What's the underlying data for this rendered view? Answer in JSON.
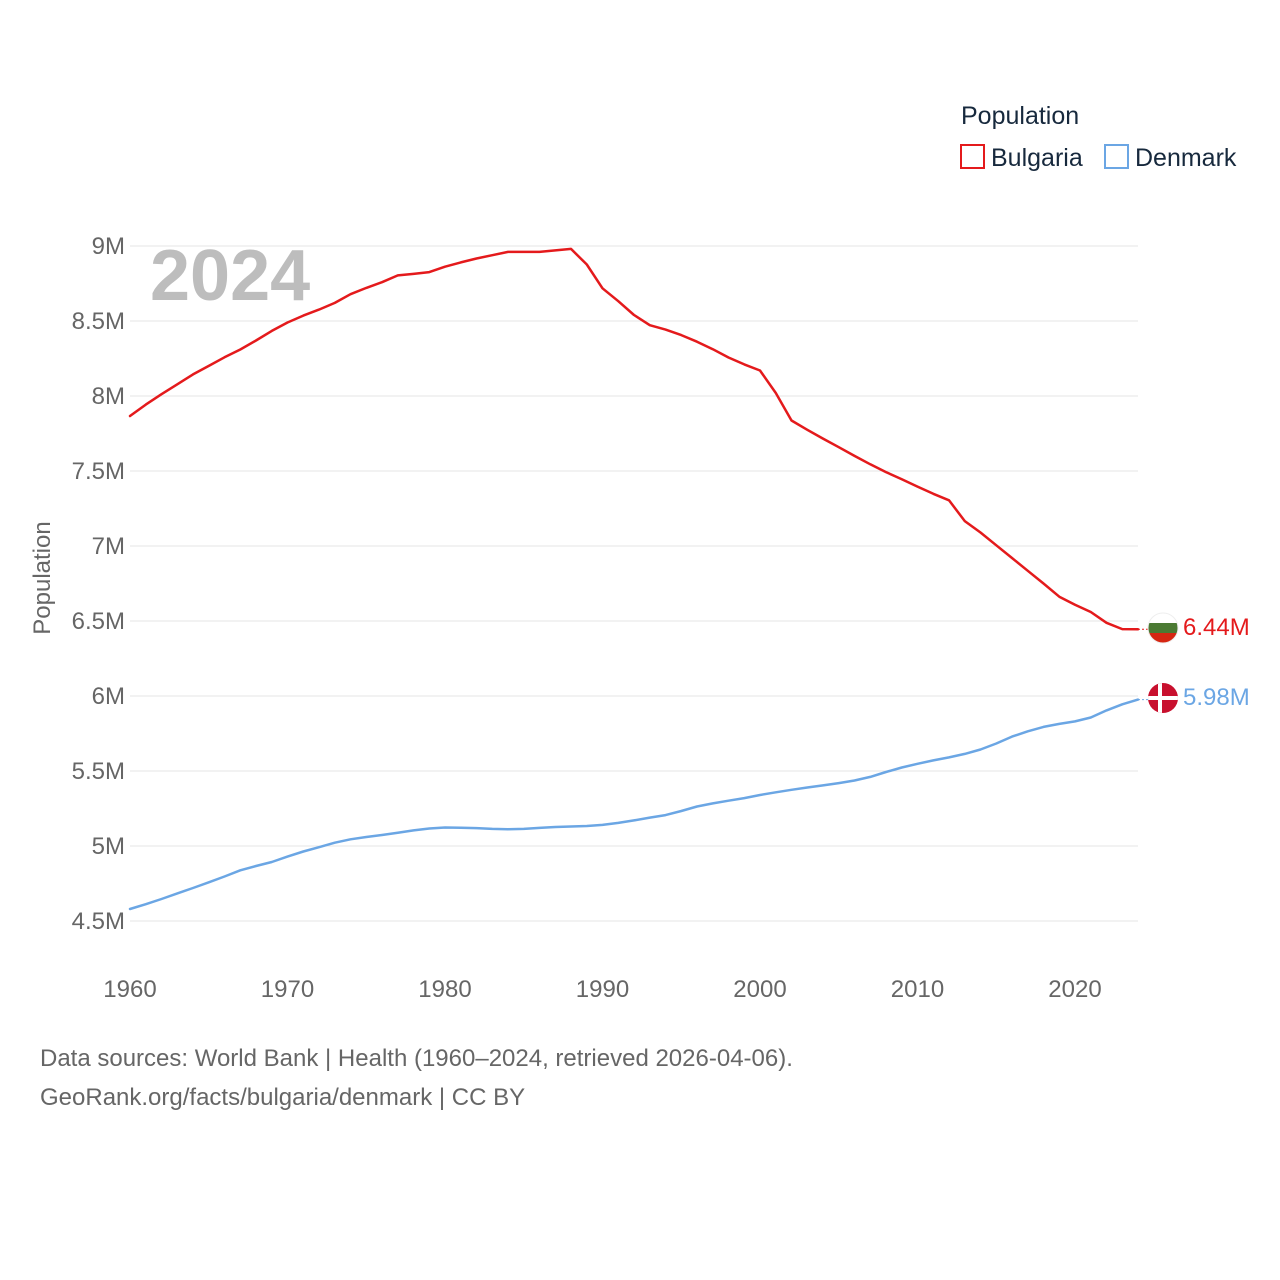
{
  "chart_data": {
    "type": "line",
    "title": "Population",
    "xlabel": "",
    "ylabel": "Population",
    "year_overlay": "2024",
    "xlim": [
      1960,
      2024
    ],
    "ylim": [
      4300000,
      9050000
    ],
    "x_ticks": [
      1960,
      1970,
      1980,
      1990,
      2000,
      2010,
      2020
    ],
    "x_tick_labels": [
      "1960",
      "1970",
      "1980",
      "1990",
      "2000",
      "2010",
      "2020"
    ],
    "y_ticks": [
      4500000,
      5000000,
      5500000,
      6000000,
      6500000,
      7000000,
      7500000,
      8000000,
      8500000,
      9000000
    ],
    "y_tick_labels": [
      "4.5M",
      "5M",
      "5.5M",
      "6M",
      "6.5M",
      "7M",
      "7.5M",
      "8M",
      "8.5M",
      "9M"
    ],
    "legend": {
      "title": "Population",
      "position": "top-right"
    },
    "x": [
      1960,
      1961,
      1962,
      1963,
      1964,
      1965,
      1966,
      1967,
      1968,
      1969,
      1970,
      1971,
      1972,
      1973,
      1974,
      1975,
      1976,
      1977,
      1978,
      1979,
      1980,
      1981,
      1982,
      1983,
      1984,
      1985,
      1986,
      1987,
      1988,
      1989,
      1990,
      1991,
      1992,
      1993,
      1994,
      1995,
      1996,
      1997,
      1998,
      1999,
      2000,
      2001,
      2002,
      2003,
      2004,
      2005,
      2006,
      2007,
      2008,
      2009,
      2010,
      2011,
      2012,
      2013,
      2014,
      2015,
      2016,
      2017,
      2018,
      2019,
      2020,
      2021,
      2022,
      2023,
      2024
    ],
    "series": [
      {
        "name": "Bulgaria",
        "color": "#e41a1c",
        "end_label": "6.44M",
        "values": [
          7867000,
          7943000,
          8012000,
          8078000,
          8144000,
          8201000,
          8258000,
          8310000,
          8370000,
          8434000,
          8490000,
          8536000,
          8576000,
          8621000,
          8679000,
          8721000,
          8759000,
          8804000,
          8814000,
          8826000,
          8862000,
          8891000,
          8917000,
          8939000,
          8961000,
          8961000,
          8961000,
          8971000,
          8981000,
          8877000,
          8718000,
          8632000,
          8540000,
          8472000,
          8443000,
          8406000,
          8362000,
          8312000,
          8257000,
          8211000,
          8170000,
          8020000,
          7837000,
          7775000,
          7716000,
          7659000,
          7601000,
          7545000,
          7493000,
          7445000,
          7396000,
          7348000,
          7305000,
          7166000,
          7090000,
          7005000,
          6920000,
          6835000,
          6750000,
          6662000,
          6609000,
          6560000,
          6488000,
          6446000,
          6445000
        ]
      },
      {
        "name": "Denmark",
        "color": "#6ba6e4",
        "end_label": "5.98M",
        "values": [
          4580000,
          4612000,
          4647000,
          4684000,
          4720000,
          4758000,
          4797000,
          4838000,
          4867000,
          4893000,
          4929000,
          4963000,
          4992000,
          5022000,
          5045000,
          5060000,
          5073000,
          5088000,
          5104000,
          5117000,
          5123000,
          5122000,
          5119000,
          5114000,
          5112000,
          5114000,
          5121000,
          5127000,
          5130000,
          5133000,
          5141000,
          5154000,
          5171000,
          5189000,
          5206000,
          5233000,
          5263000,
          5284000,
          5302000,
          5319000,
          5340000,
          5358000,
          5375000,
          5390000,
          5404000,
          5419000,
          5437000,
          5461000,
          5493000,
          5523000,
          5548000,
          5571000,
          5591000,
          5614000,
          5643000,
          5683000,
          5729000,
          5765000,
          5794000,
          5814000,
          5831000,
          5857000,
          5904000,
          5945000,
          5976000
        ]
      }
    ]
  },
  "source": {
    "line1": "Data sources: World Bank | Health (1960–2024, retrieved 2026-04-06).",
    "line2": "GeoRank.org/facts/bulgaria/denmark | CC BY"
  }
}
